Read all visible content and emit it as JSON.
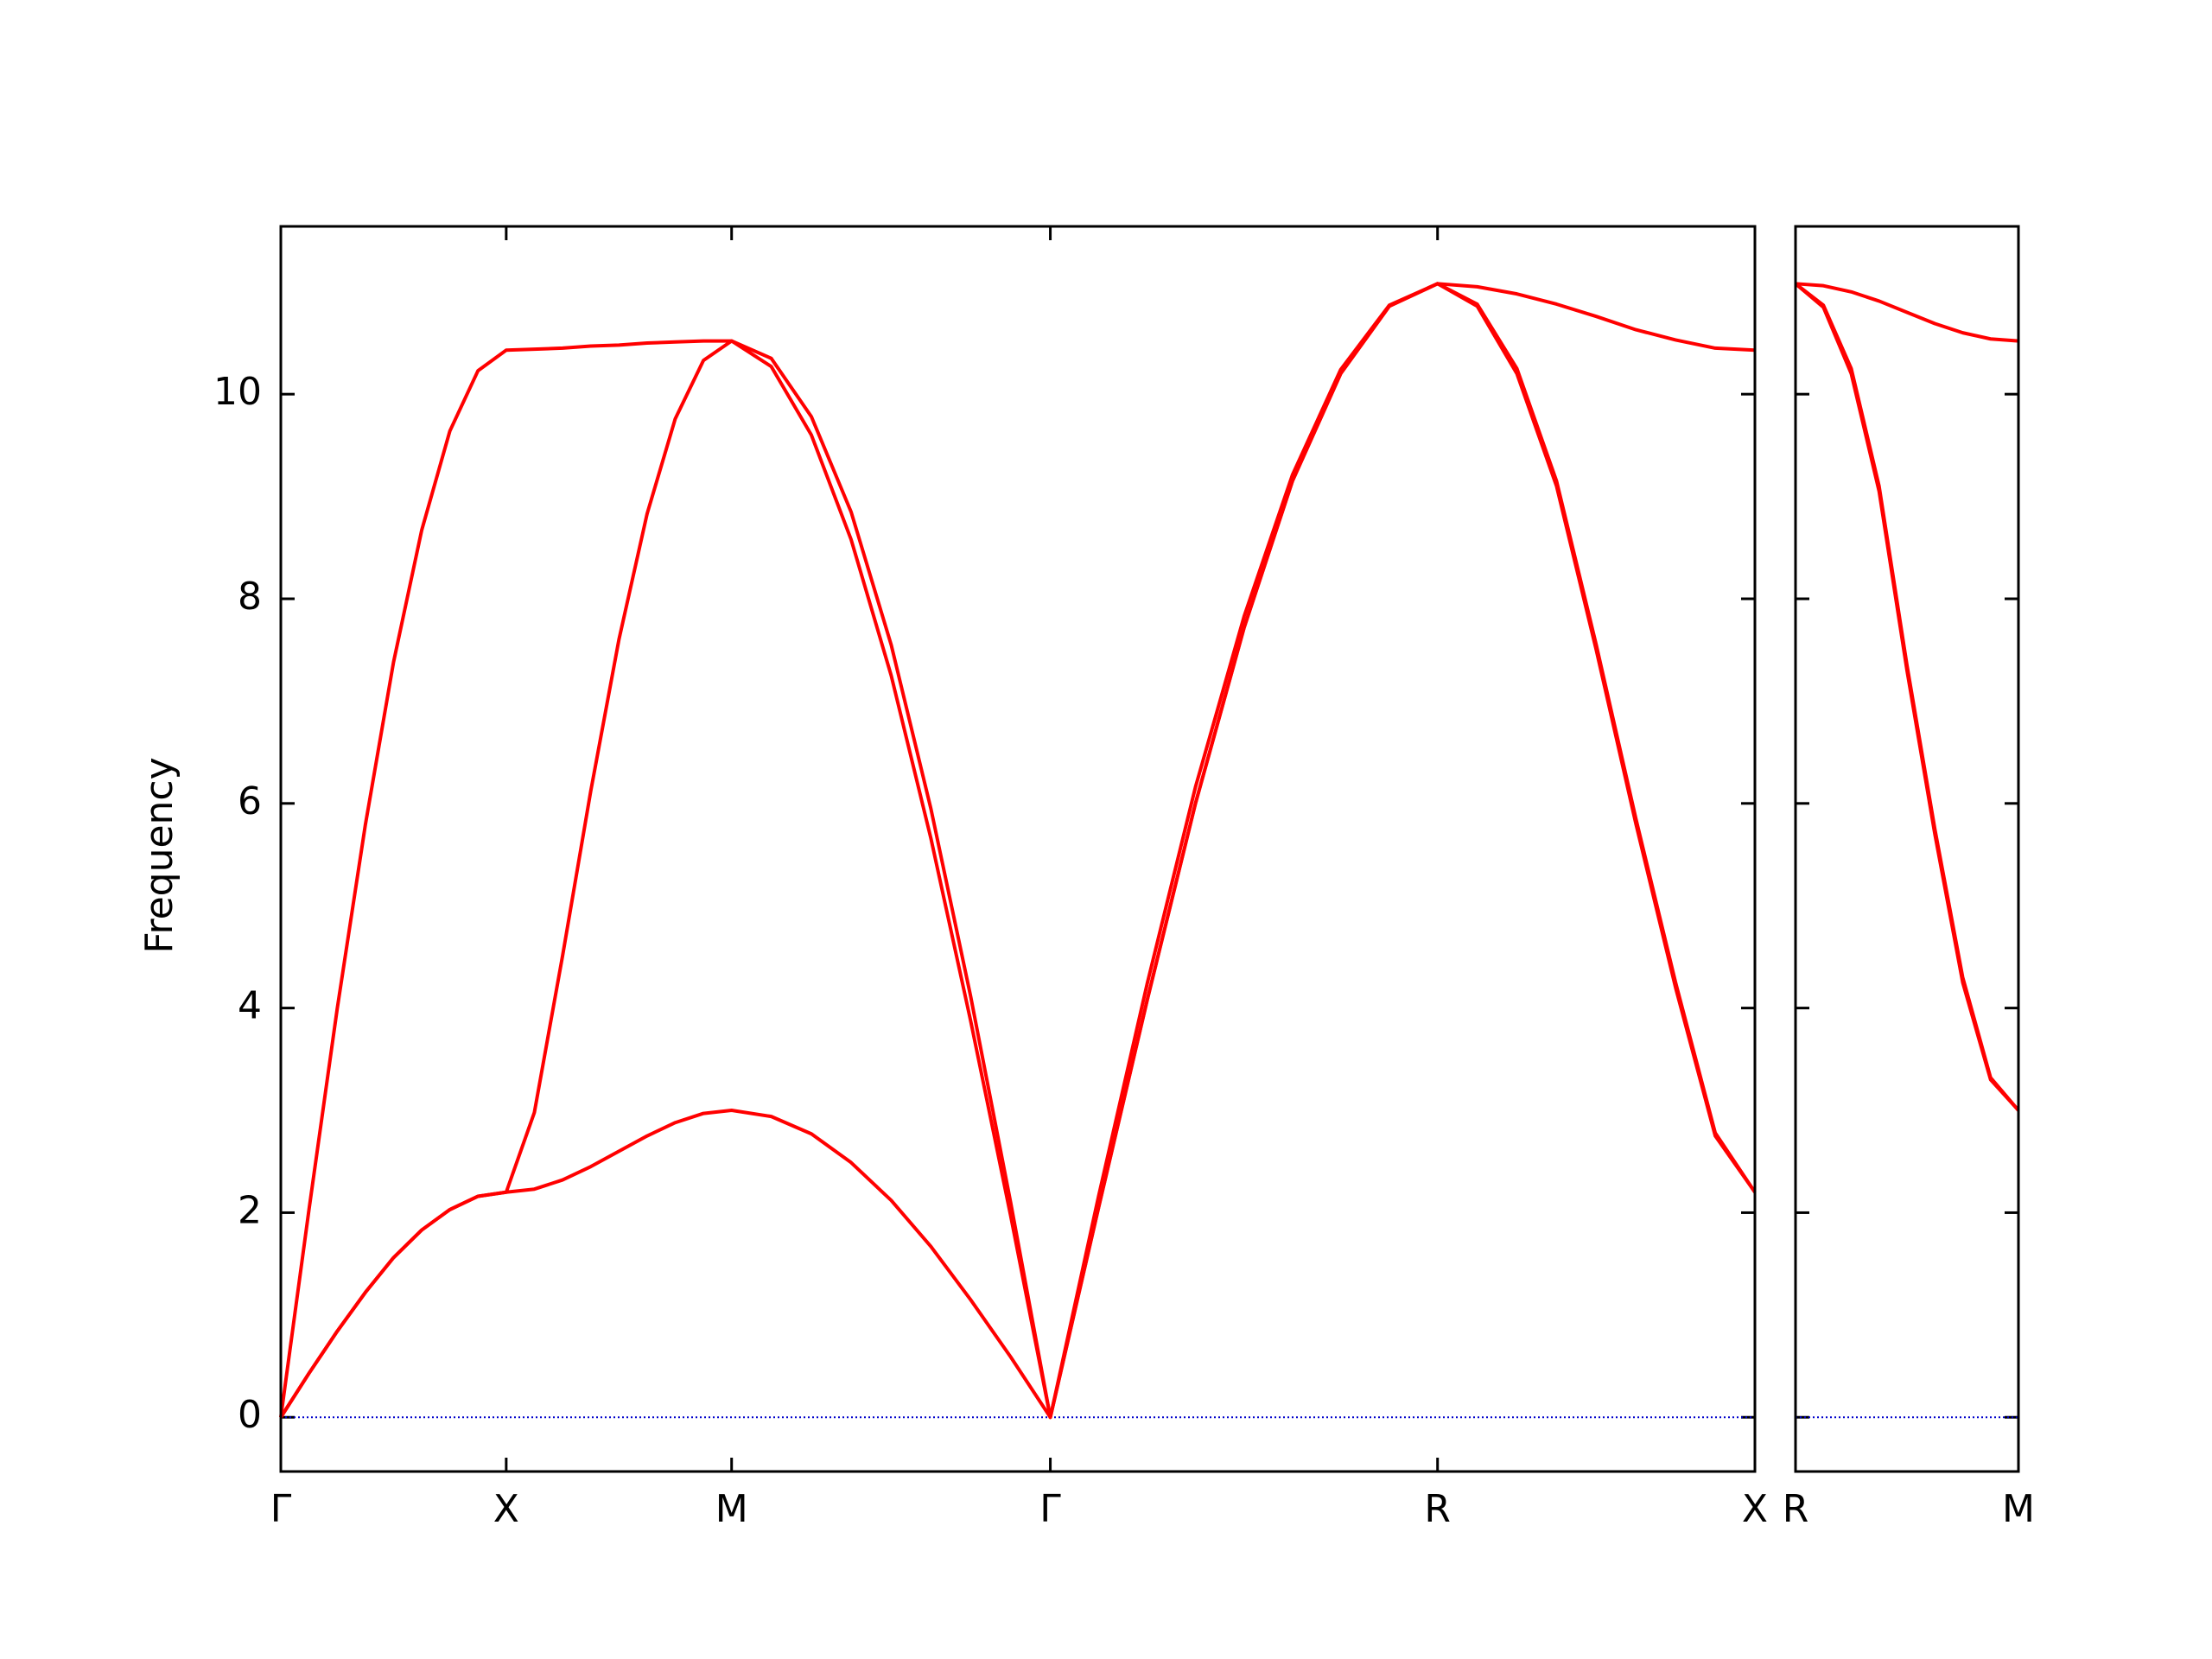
{
  "chart_data": [
    {
      "type": "line",
      "y_label": "Frequency",
      "x": [
        0,
        0.0625,
        0.125,
        0.1875,
        0.25,
        0.3125,
        0.375,
        0.4375,
        0.5,
        0.5625,
        0.625,
        0.6875,
        0.75,
        0.8125,
        0.875,
        0.9375,
        1.0,
        1.088,
        1.177,
        1.265,
        1.354,
        1.442,
        1.53,
        1.619,
        1.707,
        1.814,
        1.922,
        2.029,
        2.137,
        2.244,
        2.351,
        2.459,
        2.566,
        2.654,
        2.742,
        2.83,
        2.918,
        3.006,
        3.094,
        3.182,
        3.27
      ],
      "xlim": [
        0,
        3.27
      ],
      "xticks": [
        {
          "value": 0,
          "label": "Γ"
        },
        {
          "value": 0.5,
          "label": "X"
        },
        {
          "value": 1.0,
          "label": "M"
        },
        {
          "value": 1.707,
          "label": "Γ"
        },
        {
          "value": 2.566,
          "label": "R"
        },
        {
          "value": 3.27,
          "label": "X"
        }
      ],
      "ylim": [
        -0.53,
        11.64
      ],
      "yticks": [
        0,
        2,
        4,
        6,
        8,
        10
      ],
      "show_ytick_labels": true,
      "hlines": [
        {
          "y": 0,
          "color": "#0000cc"
        }
      ],
      "series": [
        {
          "color": "#ff0000",
          "values": [
            0,
            0.43,
            0.84,
            1.22,
            1.56,
            1.83,
            2.03,
            2.16,
            2.2,
            2.23,
            2.32,
            2.45,
            2.6,
            2.75,
            2.88,
            2.97,
            3.0,
            2.94,
            2.77,
            2.49,
            2.12,
            1.67,
            1.15,
            0.59,
            0,
            2.05,
            4.08,
            6.0,
            7.72,
            9.15,
            10.2,
            10.86,
            11.08,
            10.86,
            10.2,
            9.1,
            7.5,
            5.8,
            4.2,
            2.75,
            2.2
          ]
        },
        {
          "color": "#ff0000",
          "values": [
            0,
            0.43,
            0.84,
            1.22,
            1.56,
            1.83,
            2.03,
            2.16,
            2.2,
            2.98,
            4.51,
            6.12,
            7.6,
            8.83,
            9.76,
            10.33,
            10.52,
            10.27,
            9.6,
            8.58,
            7.25,
            5.66,
            3.88,
            1.97,
            0,
            2.05,
            4.08,
            6.0,
            7.72,
            9.15,
            10.2,
            10.86,
            11.08,
            10.88,
            10.25,
            9.15,
            7.55,
            5.85,
            4.25,
            2.78,
            2.2
          ]
        },
        {
          "color": "#ff0000",
          "values": [
            0,
            2.03,
            3.99,
            5.79,
            7.38,
            8.67,
            9.64,
            10.23,
            10.43,
            10.44,
            10.45,
            10.47,
            10.48,
            10.5,
            10.51,
            10.52,
            10.52,
            10.35,
            9.78,
            8.85,
            7.55,
            5.95,
            4.12,
            2.1,
            0,
            2.16,
            4.24,
            6.16,
            7.83,
            9.21,
            10.24,
            10.87,
            11.08,
            11.05,
            10.98,
            10.88,
            10.76,
            10.63,
            10.53,
            10.45,
            10.43
          ]
        }
      ]
    },
    {
      "type": "line",
      "x": [
        0,
        0.0625,
        0.125,
        0.1875,
        0.25,
        0.3125,
        0.375,
        0.4375,
        0.5
      ],
      "xlim": [
        0,
        0.5
      ],
      "xticks": [
        {
          "value": 0,
          "label": "R"
        },
        {
          "value": 0.5,
          "label": "M"
        }
      ],
      "ylim": [
        -0.53,
        11.64
      ],
      "yticks": [
        0,
        2,
        4,
        6,
        8,
        10
      ],
      "show_ytick_labels": false,
      "hlines": [
        {
          "y": 0,
          "color": "#0000cc"
        }
      ],
      "series": [
        {
          "color": "#ff0000",
          "values": [
            11.08,
            10.85,
            10.2,
            9.05,
            7.3,
            5.7,
            4.25,
            3.3,
            3.0
          ]
        },
        {
          "color": "#ff0000",
          "values": [
            11.08,
            10.87,
            10.25,
            9.1,
            7.35,
            5.75,
            4.3,
            3.32,
            3.0
          ]
        },
        {
          "color": "#ff0000",
          "values": [
            11.08,
            11.06,
            11.0,
            10.91,
            10.8,
            10.69,
            10.6,
            10.54,
            10.52
          ]
        }
      ]
    }
  ]
}
